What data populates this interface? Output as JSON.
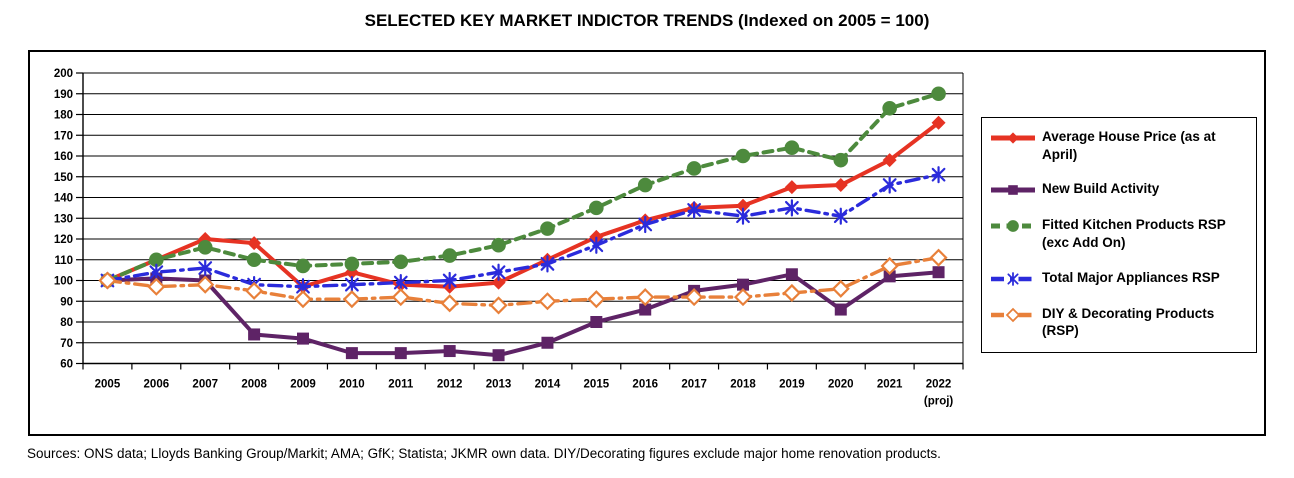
{
  "title": "SELECTED KEY MARKET INDICTOR TRENDS (Indexed on 2005 = 100)",
  "source_note": "Sources: ONS data; Lloyds Banking Group/Markit; AMA; GfK; Statista; JKMR own data. DIY/Decorating figures exclude major home renovation products.",
  "chart_data": {
    "type": "line",
    "categories": [
      "2005",
      "2006",
      "2007",
      "2008",
      "2009",
      "2010",
      "2011",
      "2012",
      "2013",
      "2014",
      "2015",
      "2016",
      "2017",
      "2018",
      "2019",
      "2020",
      "2021",
      "2022"
    ],
    "last_category_note": "(proj)",
    "y_ticks": [
      200,
      190,
      180,
      170,
      160,
      150,
      140,
      130,
      120,
      110,
      100,
      90,
      80,
      70,
      60
    ],
    "ylim": [
      60,
      200
    ],
    "grid": true,
    "legend_position": "right",
    "series": [
      {
        "name": "Average House Price (as at April)",
        "color": "#e63323",
        "marker": "diamond",
        "dash": "solid",
        "width": 4,
        "values": [
          100,
          110,
          120,
          118,
          97,
          104,
          98,
          97,
          99,
          110,
          121,
          129,
          135,
          136,
          145,
          146,
          158,
          176
        ]
      },
      {
        "name": "New Build Activity",
        "color": "#5e2366",
        "marker": "square",
        "dash": "solid",
        "width": 4,
        "values": [
          100,
          101,
          100,
          74,
          72,
          65,
          65,
          66,
          64,
          70,
          80,
          86,
          95,
          98,
          103,
          86,
          102,
          104
        ]
      },
      {
        "name": "Fitted Kitchen Products RSP (exc Add On)",
        "color": "#4d8a3d",
        "marker": "circle",
        "dash": "dashed",
        "width": 4,
        "values": [
          100,
          110,
          116,
          110,
          107,
          108,
          109,
          112,
          117,
          125,
          135,
          146,
          154,
          160,
          164,
          158,
          183,
          190
        ]
      },
      {
        "name": "Total Major Appliances RSP",
        "color": "#2b2bdb",
        "marker": "x",
        "dash": "dashdot",
        "width": 3.4,
        "values": [
          100,
          104,
          106,
          98,
          97,
          98,
          99,
          100,
          104,
          108,
          117,
          127,
          134,
          131,
          135,
          131,
          146,
          151
        ]
      },
      {
        "name": "DIY & Decorating Products (RSP)",
        "color": "#e8803a",
        "marker": "open-diamond",
        "dash": "dashdot",
        "width": 3.4,
        "values": [
          100,
          97,
          98,
          95,
          91,
          91,
          92,
          89,
          88,
          90,
          91,
          92,
          92,
          92,
          94,
          96,
          107,
          111
        ]
      }
    ]
  }
}
